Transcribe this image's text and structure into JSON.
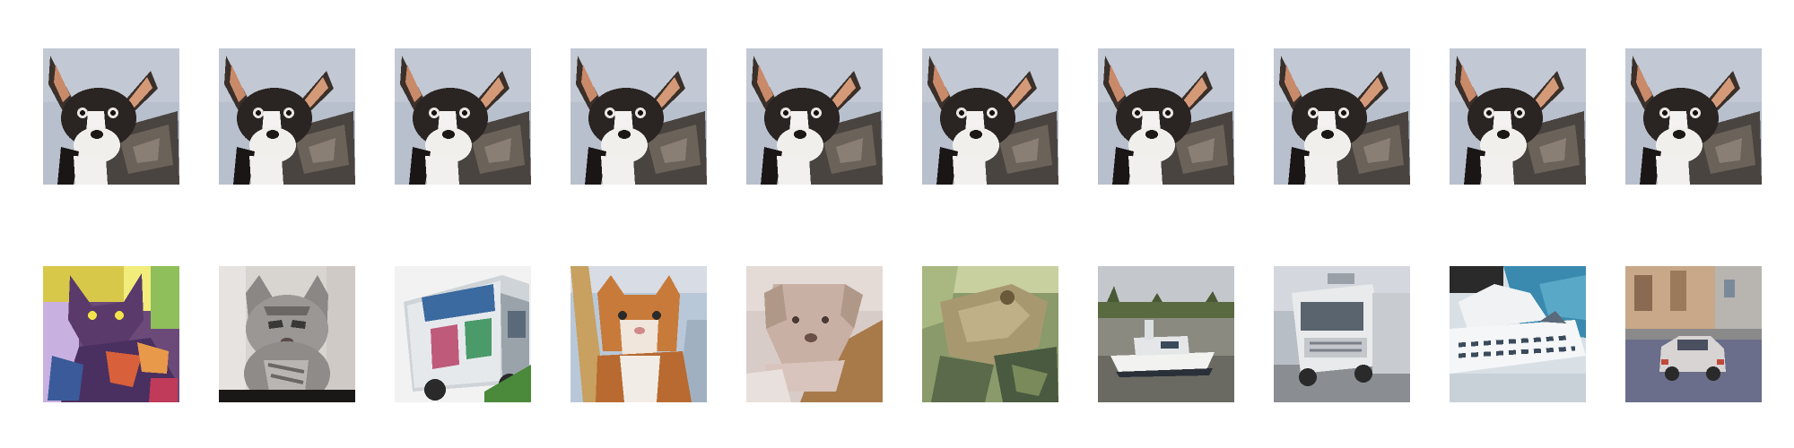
{
  "figure": {
    "rows": [
      {
        "id": "query",
        "tiles": [
          {
            "subject": "chihuahua-dog"
          },
          {
            "subject": "chihuahua-dog"
          },
          {
            "subject": "chihuahua-dog"
          },
          {
            "subject": "chihuahua-dog"
          },
          {
            "subject": "chihuahua-dog"
          },
          {
            "subject": "chihuahua-dog"
          },
          {
            "subject": "chihuahua-dog"
          },
          {
            "subject": "chihuahua-dog"
          },
          {
            "subject": "chihuahua-dog"
          },
          {
            "subject": "chihuahua-dog"
          }
        ]
      },
      {
        "id": "results",
        "tiles": [
          {
            "subject": "colorful-cat-painting"
          },
          {
            "subject": "gray-tabby-kitten"
          },
          {
            "subject": "food-truck"
          },
          {
            "subject": "orange-white-cat"
          },
          {
            "subject": "cream-dog"
          },
          {
            "subject": "frog"
          },
          {
            "subject": "boat-on-water"
          },
          {
            "subject": "white-truck"
          },
          {
            "subject": "white-ship"
          },
          {
            "subject": "car-on-street"
          }
        ]
      }
    ]
  }
}
